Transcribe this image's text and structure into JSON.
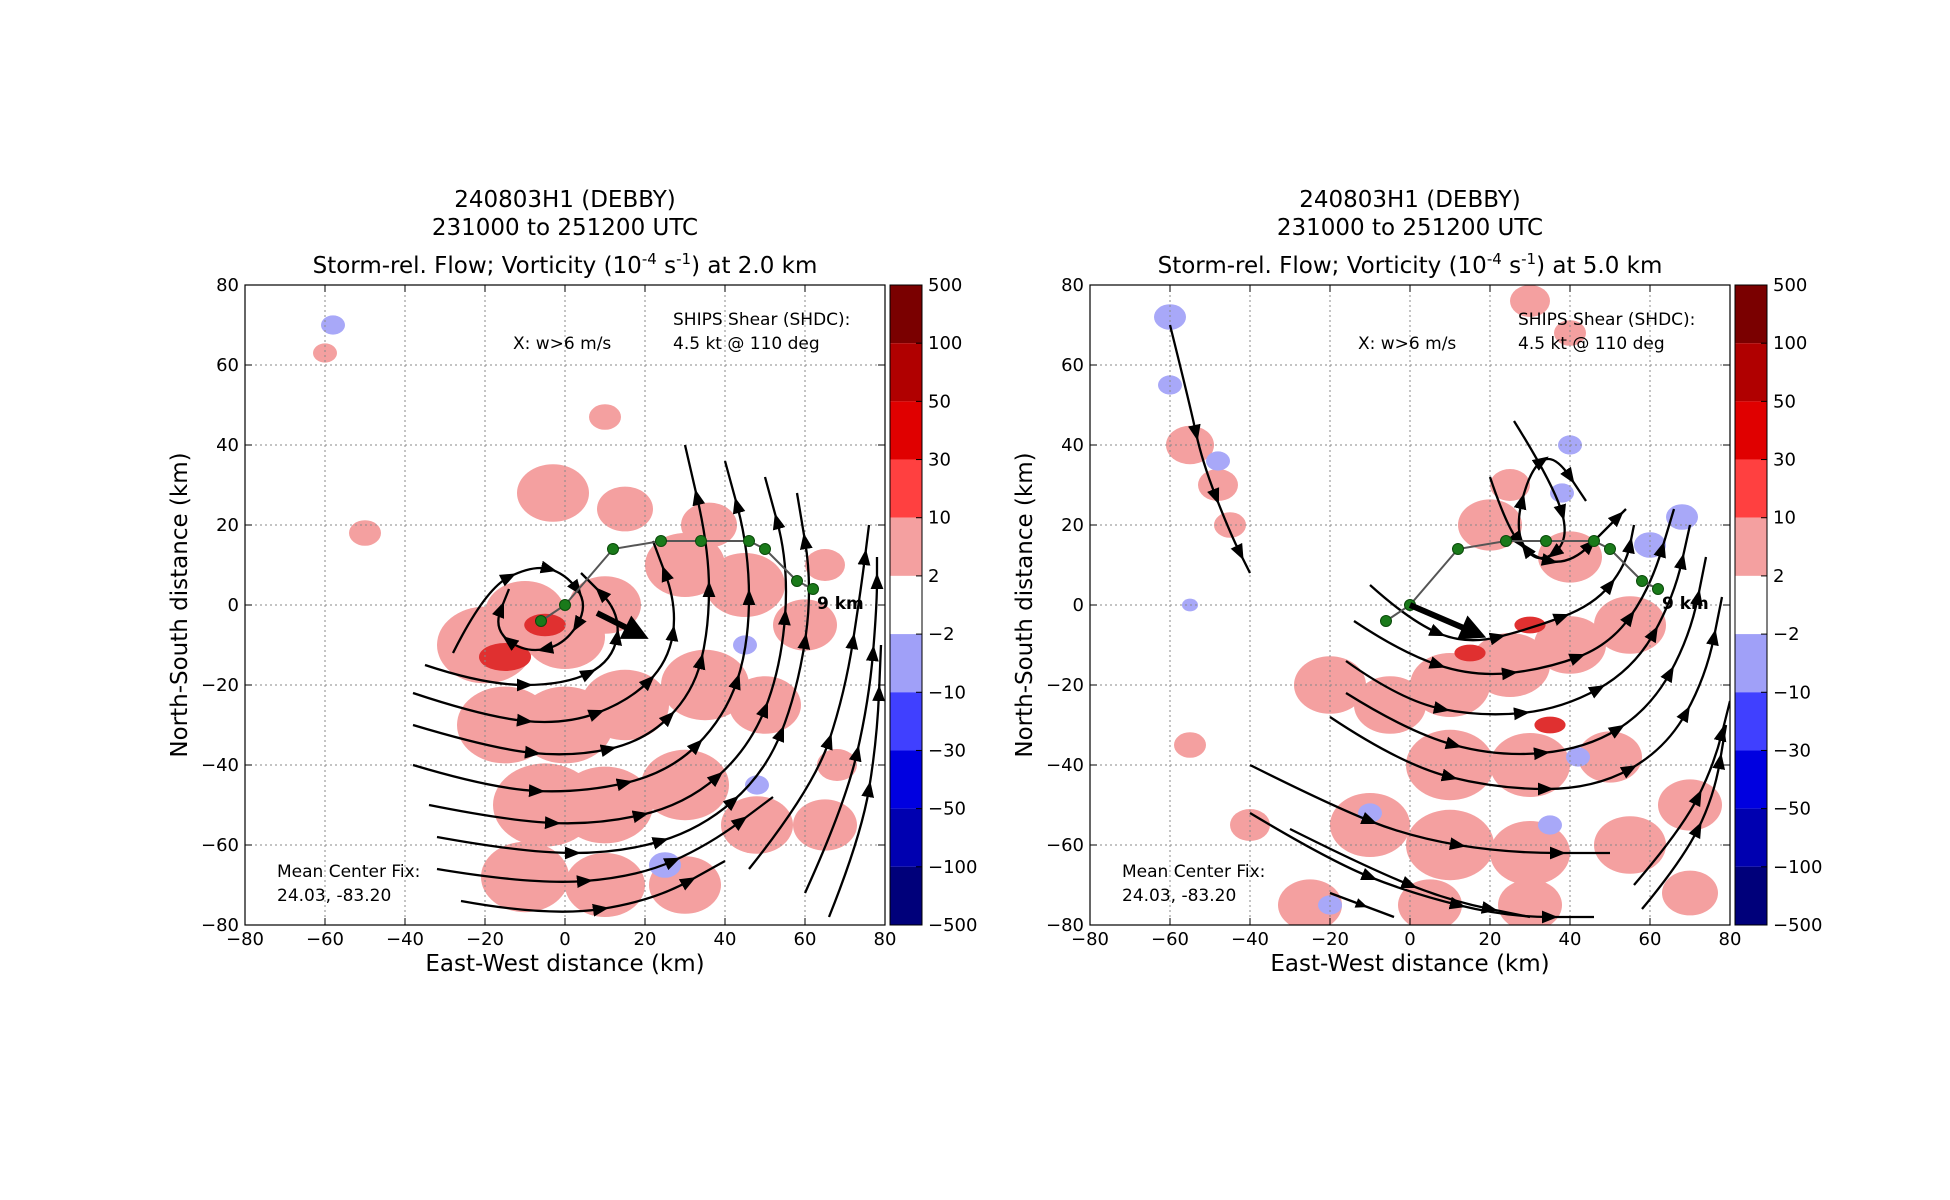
{
  "colors": {
    "text": "#000000",
    "grid": "#888888",
    "positive_vorticity": "#f4a0a0",
    "strong_positive_vorticity": "#e03030",
    "negative_vorticity": "#a8a8f8",
    "track_point": "#1a7a1a",
    "track_line": "#555555",
    "streamline": "#000000"
  },
  "colorbar": {
    "ticks": [
      "500",
      "100",
      "50",
      "30",
      "10",
      "2",
      "−2",
      "−10",
      "−30",
      "−50",
      "−100",
      "−500"
    ],
    "colors": [
      "#7a0000",
      "#b00000",
      "#e00000",
      "#ff4040",
      "#f4a0a0",
      "#ffffff",
      "#a0a0f8",
      "#4040ff",
      "#0000e0",
      "#0000b0",
      "#00007a"
    ]
  },
  "chart_data": [
    {
      "type": "heatmap",
      "title_lines": [
        "240803H1 (DEBBY)",
        "231000 to 251200 UTC"
      ],
      "title_prefix": "Storm-rel. Flow; Vorticity (10",
      "title_exp1": "-4",
      "title_mid": " s",
      "title_exp2": "-1",
      "title_suffix": ") at 2.0 km",
      "xlabel": "East-West distance (km)",
      "ylabel": "North-South distance (km)",
      "xlim": [
        -80,
        80
      ],
      "ylim": [
        -80,
        80
      ],
      "xticks": [
        -80,
        -60,
        -40,
        -20,
        0,
        20,
        40,
        60,
        80
      ],
      "yticks": [
        -80,
        -60,
        -40,
        -20,
        0,
        20,
        40,
        60,
        80
      ],
      "xtick_labels": [
        "−80",
        "−60",
        "−40",
        "−20",
        "0",
        "20",
        "40",
        "60",
        "80"
      ],
      "ytick_labels": [
        "−80",
        "−60",
        "−40",
        "−20",
        "0",
        "20",
        "40",
        "60",
        "80"
      ],
      "grid": true,
      "annotations": {
        "w_note": "X: w>6 m/s",
        "shear_label": "SHIPS Shear (SHDC):",
        "shear_value": "4.5 kt @ 110 deg",
        "center_fix_label": "Mean Center Fix:",
        "center_fix_value": "24.03, -83.20",
        "top_label": "9 km"
      },
      "center_track": [
        [
          -6,
          -4
        ],
        [
          0,
          0
        ],
        [
          12,
          14
        ],
        [
          24,
          16
        ],
        [
          34,
          16
        ],
        [
          46,
          16
        ],
        [
          50,
          14
        ],
        [
          58,
          6
        ],
        [
          62,
          4
        ]
      ],
      "shear_vector": {
        "from": [
          8,
          -2
        ],
        "to": [
          16,
          -6
        ]
      },
      "vorticity_positive": [
        [
          -20,
          -10,
          12
        ],
        [
          -10,
          -2,
          10
        ],
        [
          0,
          -8,
          10
        ],
        [
          10,
          0,
          9
        ],
        [
          30,
          10,
          10
        ],
        [
          45,
          5,
          10
        ],
        [
          60,
          -5,
          8
        ],
        [
          -15,
          -30,
          12
        ],
        [
          0,
          -30,
          12
        ],
        [
          15,
          -25,
          11
        ],
        [
          35,
          -20,
          11
        ],
        [
          50,
          -25,
          9
        ],
        [
          -5,
          -50,
          13
        ],
        [
          10,
          -50,
          12
        ],
        [
          30,
          -45,
          11
        ],
        [
          48,
          -55,
          9
        ],
        [
          -10,
          -68,
          11
        ],
        [
          10,
          -70,
          10
        ],
        [
          30,
          -70,
          9
        ],
        [
          65,
          -55,
          8
        ],
        [
          68,
          -40,
          5
        ],
        [
          -3,
          28,
          9
        ],
        [
          15,
          24,
          7
        ],
        [
          36,
          20,
          7
        ],
        [
          -60,
          63,
          3
        ],
        [
          -50,
          18,
          4
        ],
        [
          10,
          47,
          4
        ],
        [
          65,
          10,
          5
        ]
      ],
      "vorticity_strong": [
        [
          -15,
          -13,
          5
        ],
        [
          -5,
          -5,
          4
        ]
      ],
      "vorticity_negative": [
        [
          -58,
          70,
          3
        ],
        [
          25,
          -65,
          4
        ],
        [
          45,
          -10,
          3
        ],
        [
          48,
          -45,
          3
        ]
      ],
      "streamlines": [
        [
          [
            -28,
            -12
          ],
          [
            -20,
            4
          ],
          [
            -8,
            10
          ],
          [
            0,
            8
          ],
          [
            6,
            0
          ],
          [
            0,
            -10
          ],
          [
            -10,
            -12
          ],
          [
            -18,
            -6
          ],
          [
            -14,
            4
          ]
        ],
        [
          [
            -35,
            -15
          ],
          [
            -20,
            -20
          ],
          [
            0,
            -20
          ],
          [
            12,
            -14
          ],
          [
            14,
            -2
          ],
          [
            4,
            8
          ]
        ],
        [
          [
            -38,
            -22
          ],
          [
            -20,
            -28
          ],
          [
            0,
            -30
          ],
          [
            16,
            -24
          ],
          [
            26,
            -14
          ],
          [
            28,
            0
          ],
          [
            22,
            16
          ]
        ],
        [
          [
            -38,
            -30
          ],
          [
            -18,
            -36
          ],
          [
            2,
            -38
          ],
          [
            20,
            -34
          ],
          [
            32,
            -22
          ],
          [
            36,
            -6
          ],
          [
            36,
            14
          ],
          [
            30,
            40
          ]
        ],
        [
          [
            -38,
            -40
          ],
          [
            -18,
            -46
          ],
          [
            4,
            -47
          ],
          [
            26,
            -42
          ],
          [
            40,
            -28
          ],
          [
            46,
            -10
          ],
          [
            46,
            14
          ],
          [
            40,
            36
          ]
        ],
        [
          [
            -34,
            -50
          ],
          [
            -14,
            -54
          ],
          [
            8,
            -55
          ],
          [
            30,
            -50
          ],
          [
            46,
            -36
          ],
          [
            54,
            -16
          ],
          [
            56,
            10
          ],
          [
            50,
            32
          ]
        ],
        [
          [
            -32,
            -58
          ],
          [
            -10,
            -62
          ],
          [
            14,
            -62
          ],
          [
            34,
            -56
          ],
          [
            50,
            -42
          ],
          [
            58,
            -22
          ],
          [
            62,
            4
          ],
          [
            58,
            28
          ]
        ],
        [
          [
            -32,
            -66
          ],
          [
            -8,
            -70
          ],
          [
            18,
            -68
          ],
          [
            36,
            -60
          ],
          [
            52,
            -48
          ]
        ],
        [
          [
            -26,
            -74
          ],
          [
            -4,
            -78
          ],
          [
            22,
            -74
          ],
          [
            40,
            -64
          ]
        ],
        [
          [
            46,
            -66
          ],
          [
            62,
            -46
          ],
          [
            70,
            -22
          ],
          [
            74,
            4
          ],
          [
            76,
            20
          ]
        ],
        [
          [
            60,
            -72
          ],
          [
            70,
            -50
          ],
          [
            76,
            -24
          ],
          [
            78,
            0
          ],
          [
            78,
            12
          ]
        ],
        [
          [
            66,
            -78
          ],
          [
            74,
            -58
          ],
          [
            78,
            -34
          ],
          [
            79,
            -10
          ]
        ]
      ]
    },
    {
      "type": "heatmap",
      "title_lines": [
        "240803H1 (DEBBY)",
        "231000 to 251200 UTC"
      ],
      "title_prefix": "Storm-rel. Flow; Vorticity (10",
      "title_exp1": "-4",
      "title_mid": " s",
      "title_exp2": "-1",
      "title_suffix": ") at 5.0 km",
      "xlabel": "East-West distance (km)",
      "ylabel": "North-South distance (km)",
      "xlim": [
        -80,
        80
      ],
      "ylim": [
        -80,
        80
      ],
      "xticks": [
        -80,
        -60,
        -40,
        -20,
        0,
        20,
        40,
        60,
        80
      ],
      "yticks": [
        -80,
        -60,
        -40,
        -20,
        0,
        20,
        40,
        60,
        80
      ],
      "xtick_labels": [
        "−80",
        "−60",
        "−40",
        "−20",
        "0",
        "20",
        "40",
        "60",
        "80"
      ],
      "ytick_labels": [
        "−80",
        "−60",
        "−40",
        "−20",
        "0",
        "20",
        "40",
        "60",
        "80"
      ],
      "grid": true,
      "annotations": {
        "w_note": "X: w>6 m/s",
        "shear_label": "SHIPS Shear (SHDC):",
        "shear_value": "4.5 kt @ 110 deg",
        "center_fix_label": "Mean Center Fix:",
        "center_fix_value": "24.03, -83.20",
        "top_label": "9 km"
      },
      "center_track": [
        [
          -6,
          -4
        ],
        [
          0,
          0
        ],
        [
          12,
          14
        ],
        [
          24,
          16
        ],
        [
          34,
          16
        ],
        [
          46,
          16
        ],
        [
          50,
          14
        ],
        [
          58,
          6
        ],
        [
          62,
          4
        ]
      ],
      "shear_vector": {
        "from": [
          0,
          0
        ],
        "to": [
          14,
          -6
        ]
      },
      "vorticity_positive": [
        [
          -55,
          40,
          6
        ],
        [
          -48,
          30,
          5
        ],
        [
          -45,
          20,
          4
        ],
        [
          30,
          76,
          5
        ],
        [
          40,
          68,
          4
        ],
        [
          -20,
          -20,
          9
        ],
        [
          -5,
          -25,
          9
        ],
        [
          10,
          -20,
          10
        ],
        [
          25,
          -15,
          10
        ],
        [
          40,
          -10,
          9
        ],
        [
          55,
          -5,
          9
        ],
        [
          10,
          -40,
          11
        ],
        [
          30,
          -40,
          10
        ],
        [
          50,
          -38,
          8
        ],
        [
          -10,
          -55,
          10
        ],
        [
          10,
          -60,
          11
        ],
        [
          30,
          -62,
          10
        ],
        [
          55,
          -60,
          9
        ],
        [
          70,
          -50,
          8
        ],
        [
          -25,
          -75,
          8
        ],
        [
          5,
          -75,
          8
        ],
        [
          30,
          -75,
          8
        ],
        [
          70,
          -72,
          7
        ],
        [
          -55,
          -35,
          4
        ],
        [
          -40,
          -55,
          5
        ],
        [
          20,
          20,
          8
        ],
        [
          40,
          12,
          8
        ],
        [
          25,
          30,
          5
        ]
      ],
      "vorticity_strong": [
        [
          15,
          -12,
          3
        ],
        [
          30,
          -5,
          3
        ],
        [
          35,
          -30,
          3
        ]
      ],
      "vorticity_negative": [
        [
          -60,
          72,
          4
        ],
        [
          -60,
          55,
          3
        ],
        [
          -48,
          36,
          3
        ],
        [
          -55,
          0,
          2
        ],
        [
          40,
          40,
          3
        ],
        [
          38,
          28,
          3
        ],
        [
          60,
          15,
          4
        ],
        [
          42,
          -38,
          3
        ],
        [
          35,
          -55,
          3
        ],
        [
          -10,
          -52,
          3
        ],
        [
          -20,
          -75,
          3
        ],
        [
          68,
          22,
          4
        ]
      ],
      "streamlines": [
        [
          [
            -60,
            70
          ],
          [
            -55,
            50
          ],
          [
            -52,
            36
          ],
          [
            -45,
            18
          ],
          [
            -40,
            8
          ]
        ],
        [
          [
            26,
            46
          ],
          [
            36,
            30
          ],
          [
            40,
            16
          ],
          [
            32,
            10
          ],
          [
            26,
            18
          ],
          [
            30,
            34
          ],
          [
            36,
            38
          ],
          [
            44,
            26
          ]
        ],
        [
          [
            20,
            32
          ],
          [
            24,
            20
          ],
          [
            30,
            12
          ],
          [
            40,
            10
          ],
          [
            50,
            20
          ],
          [
            54,
            24
          ]
        ],
        [
          [
            -10,
            5
          ],
          [
            0,
            -4
          ],
          [
            14,
            -10
          ],
          [
            30,
            -6
          ],
          [
            46,
            0
          ],
          [
            54,
            10
          ],
          [
            56,
            20
          ]
        ],
        [
          [
            -14,
            -4
          ],
          [
            -2,
            -12
          ],
          [
            16,
            -18
          ],
          [
            34,
            -16
          ],
          [
            50,
            -10
          ],
          [
            60,
            4
          ],
          [
            66,
            24
          ]
        ],
        [
          [
            -16,
            -14
          ],
          [
            -2,
            -24
          ],
          [
            18,
            -28
          ],
          [
            38,
            -26
          ],
          [
            56,
            -16
          ],
          [
            66,
            2
          ],
          [
            70,
            20
          ]
        ],
        [
          [
            -16,
            -22
          ],
          [
            0,
            -32
          ],
          [
            22,
            -38
          ],
          [
            44,
            -36
          ],
          [
            60,
            -26
          ],
          [
            70,
            -8
          ],
          [
            74,
            12
          ]
        ],
        [
          [
            -20,
            -28
          ],
          [
            -2,
            -40
          ],
          [
            22,
            -46
          ],
          [
            46,
            -46
          ],
          [
            64,
            -36
          ],
          [
            74,
            -18
          ],
          [
            78,
            2
          ]
        ],
        [
          [
            -40,
            -40
          ],
          [
            -20,
            -50
          ],
          [
            0,
            -58
          ],
          [
            24,
            -62
          ],
          [
            50,
            -62
          ]
        ],
        [
          [
            -40,
            -52
          ],
          [
            -20,
            -64
          ],
          [
            0,
            -72
          ],
          [
            24,
            -78
          ],
          [
            46,
            -78
          ]
        ],
        [
          [
            -30,
            -56
          ],
          [
            -10,
            -66
          ],
          [
            10,
            -74
          ],
          [
            30,
            -78
          ]
        ],
        [
          [
            -20,
            -72
          ],
          [
            -4,
            -78
          ]
        ],
        [
          [
            58,
            -76
          ],
          [
            68,
            -64
          ],
          [
            76,
            -48
          ],
          [
            79,
            -30
          ]
        ],
        [
          [
            56,
            -70
          ],
          [
            68,
            -56
          ],
          [
            76,
            -40
          ],
          [
            80,
            -24
          ]
        ]
      ]
    }
  ]
}
